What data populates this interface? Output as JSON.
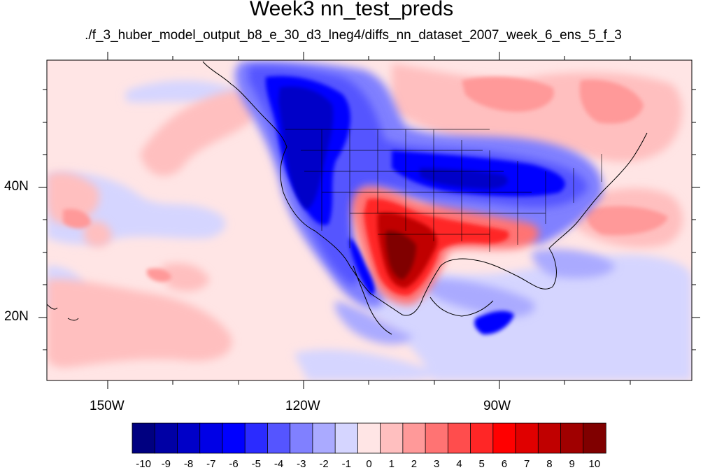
{
  "title": "Week3 nn_test_preds",
  "subtitle": "./f_3_huber_model_output_b8_e_30_d3_lneg4/diffs_nn_dataset_2007_week_6_ens_5_f_3",
  "lat_labels": [
    "40N",
    "20N"
  ],
  "lon_labels": [
    "150W",
    "120W",
    "90W"
  ],
  "colorbar": {
    "labels": [
      "-10",
      "-9",
      "-8",
      "-7",
      "-6",
      "-5",
      "-4",
      "-3",
      "-2",
      "-1",
      "0",
      "1",
      "2",
      "3",
      "4",
      "5",
      "6",
      "7",
      "8",
      "9",
      "10"
    ],
    "colors": [
      "#000080",
      "#0000a5",
      "#0000c8",
      "#0000e6",
      "#0000ff",
      "#2b2bff",
      "#5555ff",
      "#8080ff",
      "#aaaaff",
      "#d5d5ff",
      "#ffe5e5",
      "#ffbfbf",
      "#ff9999",
      "#ff7373",
      "#ff4d4d",
      "#ff2626",
      "#ff0000",
      "#e00000",
      "#c00000",
      "#a00000",
      "#800000"
    ]
  },
  "colors": {
    "background": "#ffffff",
    "land_outline": "#000000"
  }
}
